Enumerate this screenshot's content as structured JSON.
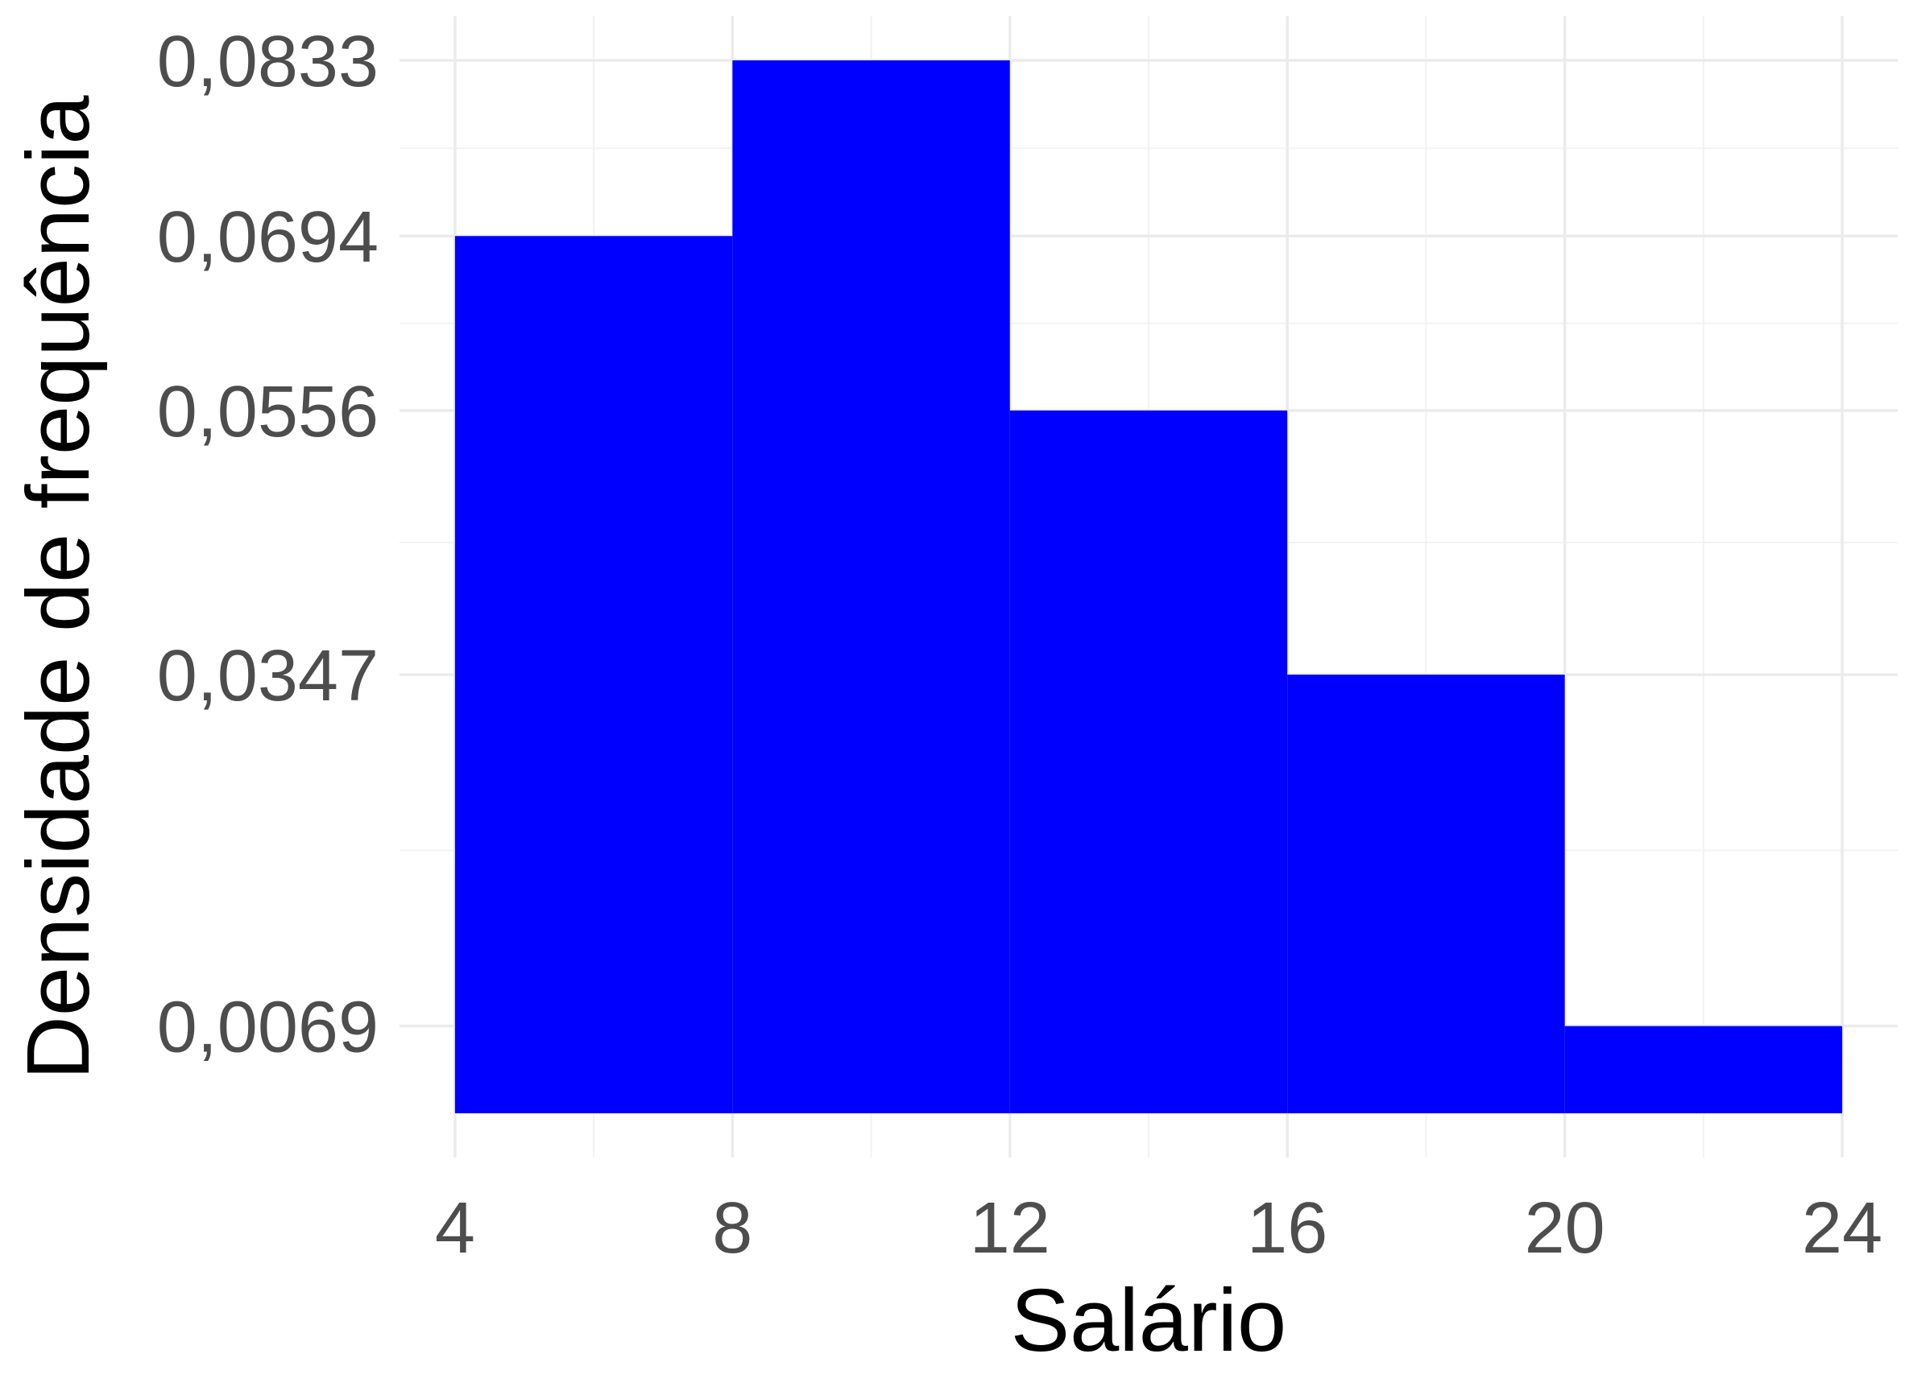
{
  "chart_data": {
    "type": "bar",
    "subtype": "histogram",
    "xlabel": "Salário",
    "ylabel": "Densidade de frequência",
    "x_tick_labels": [
      "4",
      "8",
      "12",
      "16",
      "20",
      "24"
    ],
    "x_ticks": [
      4,
      8,
      12,
      16,
      20,
      24
    ],
    "y_tick_labels": [
      "0,0069",
      "0,0347",
      "0,0556",
      "0,0694",
      "0,0833"
    ],
    "y_ticks": [
      0.0069,
      0.0347,
      0.0556,
      0.0694,
      0.0833
    ],
    "bins": [
      {
        "start": 4,
        "end": 8,
        "value": 0.0694
      },
      {
        "start": 8,
        "end": 12,
        "value": 0.0833
      },
      {
        "start": 12,
        "end": 16,
        "value": 0.0556
      },
      {
        "start": 16,
        "end": 20,
        "value": 0.0347
      },
      {
        "start": 20,
        "end": 24,
        "value": 0.0069
      }
    ],
    "xlim": [
      3.2,
      24.8
    ],
    "ylim": [
      -0.0035,
      0.0868
    ],
    "grid": true,
    "bar_color": "#0000ff",
    "background": "#ffffff"
  }
}
